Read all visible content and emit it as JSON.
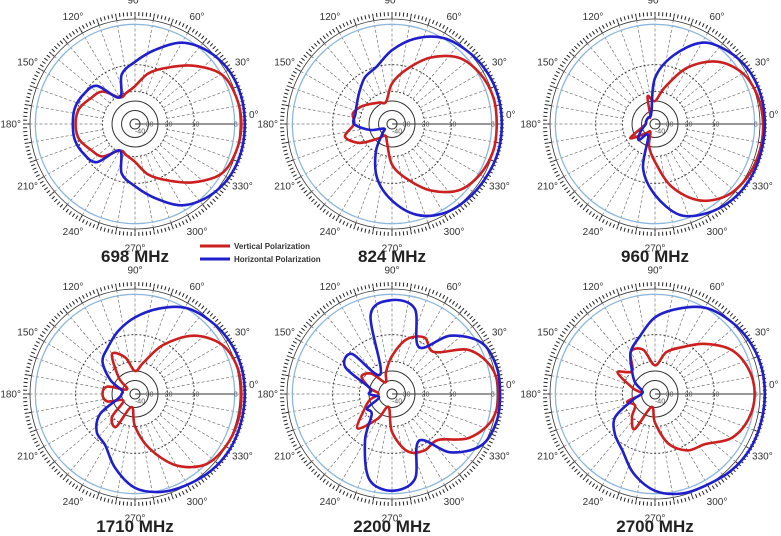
{
  "legend": {
    "vertical_label": "Vertical Polarization",
    "horizontal_label": "Horizontal Polarization",
    "vertical_color": "#cc1f1f",
    "horizontal_color": "#1f1fcc"
  },
  "chart_data": [
    {
      "type": "polar",
      "title": "698 MHz",
      "angle_labels": [
        "0°",
        "30°",
        "60°",
        "90°",
        "120°",
        "150°",
        "180°",
        "210°",
        "240°",
        "270°",
        "300°",
        "330°"
      ],
      "radial_labels": [
        "-40",
        "-30",
        "-20",
        "-10",
        "-3"
      ],
      "rlim_db": [
        -40,
        0
      ],
      "angles_deg": [
        0,
        15,
        30,
        45,
        60,
        75,
        90,
        105,
        120,
        135,
        150,
        165,
        180,
        195,
        210,
        225,
        240,
        255,
        270,
        285,
        300,
        315,
        330,
        345
      ],
      "series": [
        {
          "name": "Vertical Polarization",
          "values": [
            -1,
            -1.5,
            -3,
            -6,
            -9,
            -12.5,
            -18,
            -20,
            -21,
            -15,
            -13,
            -10.5,
            -10,
            -10.5,
            -13,
            -15,
            -21,
            -20,
            -18,
            -12.5,
            -9,
            -6,
            -3,
            -1.5
          ]
        },
        {
          "name": "Horizontal Polarization",
          "values": [
            0,
            0,
            -0.5,
            -2,
            -4,
            -7,
            -9.5,
            -13,
            -21,
            -12,
            -10,
            -9.5,
            -9.5,
            -9.5,
            -10,
            -12,
            -21,
            -13,
            -9.5,
            -7,
            -4,
            -2,
            -0.5,
            0
          ]
        }
      ]
    },
    {
      "type": "polar",
      "title": "824 MHz",
      "angle_labels": [
        "0°",
        "30°",
        "60°",
        "90°",
        "120°",
        "150°",
        "180°",
        "210°",
        "240°",
        "270°",
        "300°",
        "330°"
      ],
      "radial_labels": [
        "-40",
        "-30",
        "-20",
        "-10",
        "-3"
      ],
      "rlim_db": [
        -40,
        0
      ],
      "angles_deg": [
        0,
        15,
        30,
        45,
        60,
        75,
        90,
        105,
        120,
        135,
        150,
        165,
        180,
        195,
        210,
        225,
        240,
        255,
        270,
        285,
        300,
        315,
        330,
        345
      ],
      "series": [
        {
          "name": "Vertical Polarization",
          "values": [
            -1.5,
            -1.5,
            -2.5,
            -4,
            -7,
            -11,
            -17,
            -25,
            -24,
            -22,
            -19,
            -17,
            -18,
            -14,
            -18,
            -26,
            -30,
            -27,
            -17,
            -11,
            -7,
            -4,
            -2.5,
            -1.5
          ]
        },
        {
          "name": "Horizontal Polarization",
          "values": [
            0,
            0,
            -0.5,
            -1.5,
            -3,
            -5,
            -7.5,
            -10,
            -12,
            -15,
            -17,
            -18,
            -18,
            -25,
            -35,
            -30,
            -20,
            -11,
            -7,
            -4,
            -2,
            -1,
            -0.5,
            0
          ]
        }
      ]
    },
    {
      "type": "polar",
      "title": "960 MHz",
      "angle_labels": [
        "0°",
        "30°",
        "60°",
        "90°",
        "120°",
        "150°",
        "180°",
        "210°",
        "240°",
        "270°",
        "300°",
        "330°"
      ],
      "radial_labels": [
        "-40",
        "-30",
        "-20",
        "-10",
        "-3"
      ],
      "rlim_db": [
        -40,
        0
      ],
      "angles_deg": [
        0,
        15,
        30,
        45,
        60,
        75,
        90,
        105,
        120,
        135,
        150,
        165,
        180,
        195,
        210,
        225,
        240,
        255,
        270,
        285,
        300,
        315,
        330,
        345
      ],
      "series": [
        {
          "name": "Vertical Polarization",
          "values": [
            -0.5,
            -1,
            -2.5,
            -5,
            -9,
            -18,
            -25,
            -22,
            -35,
            -35,
            -35,
            -35,
            -35,
            -30,
            -22,
            -30,
            -35,
            -25,
            -18,
            -9,
            -5,
            -2.5,
            -1,
            -0.5
          ]
        },
        {
          "name": "Horizontal Polarization",
          "values": [
            0,
            0,
            -0.5,
            -2,
            -4,
            -8,
            -15,
            -30,
            -35,
            -35,
            -35,
            -35,
            -35,
            -32,
            -28,
            -25,
            -30,
            -15,
            -8,
            -4,
            -2,
            -0.5,
            0,
            0
          ]
        }
      ]
    },
    {
      "type": "polar",
      "title": "1710 MHz",
      "angle_labels": [
        "0°",
        "30°",
        "60°",
        "90°",
        "120°",
        "150°",
        "180°",
        "210°",
        "240°",
        "270°",
        "300°",
        "330°"
      ],
      "radial_labels": [
        "-40",
        "-30",
        "-20",
        "-10",
        "-3"
      ],
      "rlim_db": [
        -40,
        0
      ],
      "angles_deg": [
        0,
        15,
        30,
        45,
        60,
        75,
        90,
        105,
        120,
        135,
        150,
        165,
        180,
        195,
        210,
        225,
        240,
        255,
        270,
        285,
        300,
        315,
        330,
        345
      ],
      "series": [
        {
          "name": "Vertical Polarization",
          "values": [
            -1,
            -1.2,
            -3,
            -6,
            -11,
            -20,
            -25,
            -18,
            -15,
            -25,
            -35,
            -22,
            -20,
            -22,
            -30,
            -20,
            -18,
            -30,
            -20,
            -11,
            -6,
            -3,
            -1.5,
            -1
          ]
        },
        {
          "name": "Horizontal Polarization",
          "values": [
            0,
            0,
            -0.5,
            -1.5,
            -3,
            -5,
            -7,
            -9,
            -12,
            -15,
            -22,
            -30,
            -30,
            -28,
            -17,
            -12,
            -10,
            -7,
            -4,
            -2.5,
            -1.5,
            -0.5,
            0,
            0
          ]
        }
      ]
    },
    {
      "type": "polar",
      "title": "2200 MHz",
      "angle_labels": [
        "0°",
        "30°",
        "60°",
        "90°",
        "120°",
        "150°",
        "180°",
        "210°",
        "240°",
        "270°",
        "300°",
        "330°"
      ],
      "radial_labels": [
        "-40",
        "-30",
        "-20",
        "-10",
        "-3"
      ],
      "rlim_db": [
        -40,
        0
      ],
      "angles_deg": [
        0,
        15,
        30,
        45,
        60,
        75,
        90,
        105,
        120,
        135,
        150,
        165,
        180,
        195,
        210,
        225,
        240,
        255,
        270,
        285,
        300,
        315,
        330,
        345
      ],
      "series": [
        {
          "name": "Vertical Polarization",
          "values": [
            -1,
            -2,
            -5,
            -10,
            -9,
            -11,
            -18,
            -25,
            -30,
            -22,
            -19,
            -25,
            -30,
            -25,
            -20,
            -14,
            -22,
            -30,
            -18,
            -10,
            -9,
            -9,
            -5,
            -2
          ]
        },
        {
          "name": "Horizontal Polarization",
          "values": [
            -0.5,
            -0.5,
            -2,
            -6,
            -12,
            -5,
            -4,
            -6,
            -25,
            -11,
            -12,
            -25,
            -25,
            -30,
            -22,
            -22,
            -12,
            -5,
            -3.5,
            -5,
            -12,
            -6,
            -2,
            -0.5
          ]
        }
      ]
    },
    {
      "type": "polar",
      "title": "2700 MHz",
      "angle_labels": [
        "0°",
        "30°",
        "60°",
        "90°",
        "120°",
        "150°",
        "180°",
        "210°",
        "240°",
        "270°",
        "300°",
        "330°"
      ],
      "radial_labels": [
        "-40",
        "-30",
        "-20",
        "-10",
        "-3"
      ],
      "rlim_db": [
        -40,
        0
      ],
      "angles_deg": [
        0,
        15,
        30,
        45,
        60,
        75,
        90,
        105,
        120,
        135,
        150,
        165,
        180,
        195,
        210,
        225,
        240,
        255,
        270,
        285,
        300,
        315,
        330,
        345
      ],
      "series": [
        {
          "name": "Vertical Polarization",
          "values": [
            -3,
            -3.5,
            -5,
            -8,
            -12,
            -16,
            -22,
            -15,
            -14,
            -20,
            -16,
            -25,
            -30,
            -22,
            -25,
            -20,
            -17,
            -30,
            -22,
            -13,
            -9,
            -8,
            -5,
            -3.5
          ]
        },
        {
          "name": "Horizontal Polarization",
          "values": [
            0,
            0,
            -0.5,
            -1.5,
            -3,
            -5,
            -7,
            -10,
            -14,
            -20,
            -25,
            -30,
            -30,
            -25,
            -15,
            -11,
            -9,
            -6,
            -3.5,
            -2,
            -1.5,
            -0.5,
            0,
            0
          ]
        }
      ]
    }
  ]
}
